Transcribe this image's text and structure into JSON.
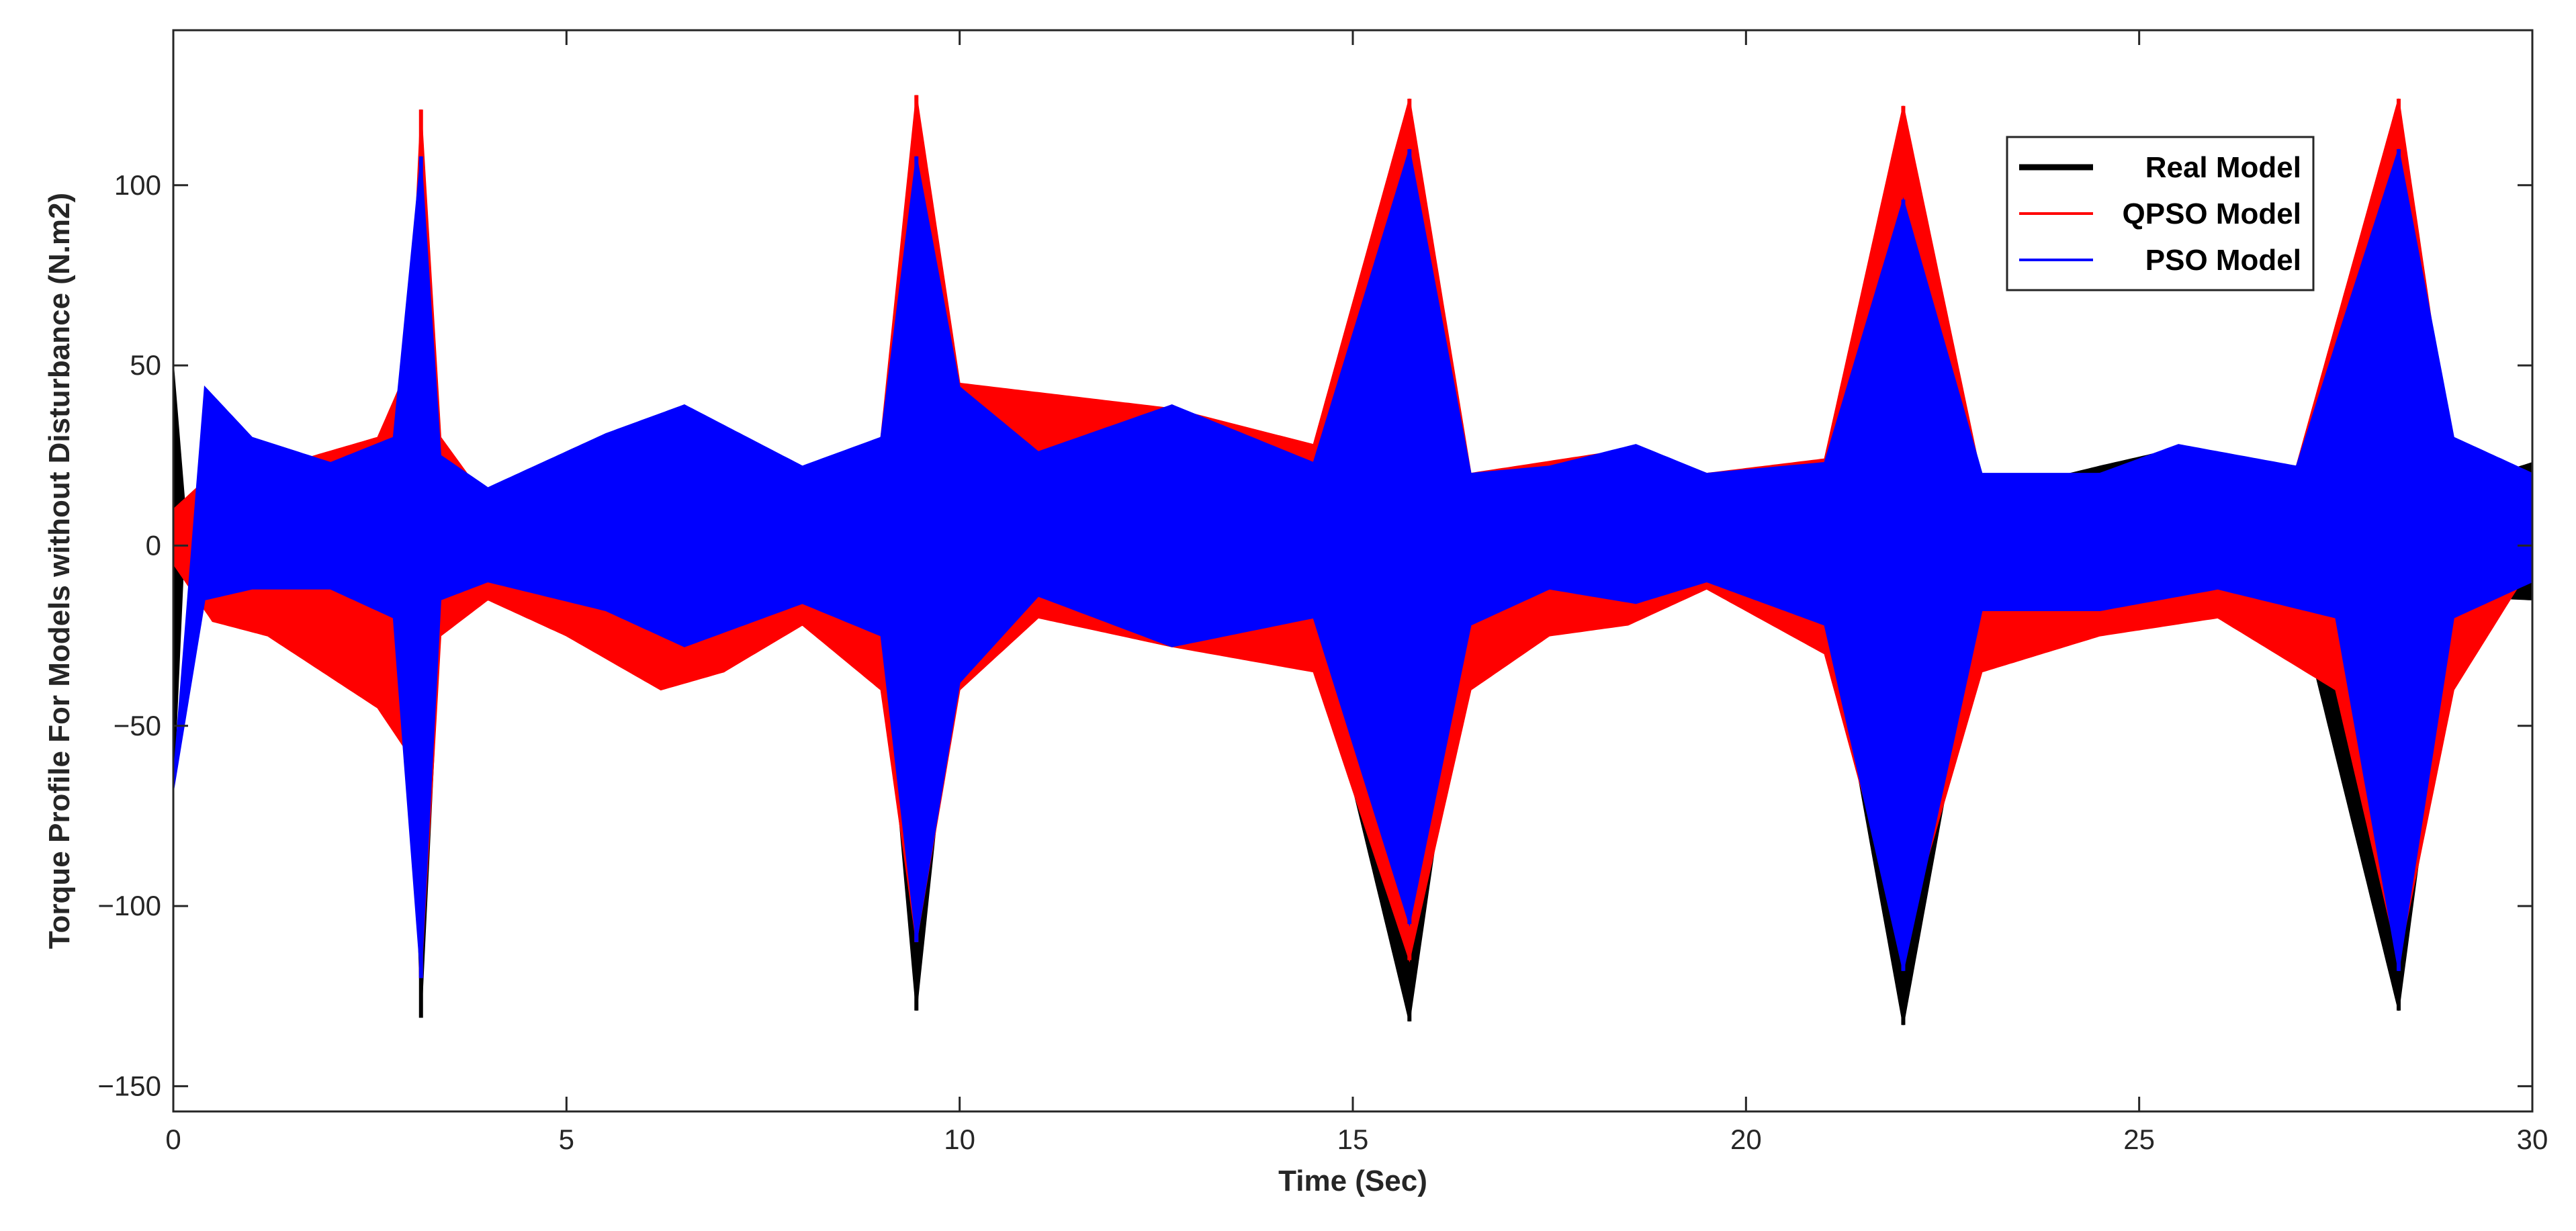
{
  "chart_data": {
    "type": "line",
    "title": "",
    "xlabel": "Time (Sec)",
    "ylabel": "Torque Profile For Models without Disturbance (N.m2)",
    "xlim": [
      0,
      30
    ],
    "ylim": [
      -157,
      143
    ],
    "xticks": [
      0,
      5,
      10,
      15,
      20,
      25,
      30
    ],
    "yticks": [
      -150,
      -100,
      -50,
      0,
      50,
      100
    ],
    "xtick_labels": [
      "0",
      "5",
      "10",
      "15",
      "20",
      "25",
      "30"
    ],
    "ytick_labels": [
      "−150",
      "−100",
      "−50",
      "0",
      "50",
      "100"
    ],
    "grid": false,
    "legend_position": "top-right",
    "spike_times": [
      3.15,
      9.45,
      15.72,
      22.0,
      28.3
    ],
    "series": [
      {
        "name": "Real Model",
        "color": "#000000",
        "envelope_upper": [
          [
            0,
            50
          ],
          [
            0.15,
            10
          ],
          [
            0.5,
            15
          ],
          [
            1.5,
            20
          ],
          [
            2.6,
            24
          ],
          [
            3.0,
            35
          ],
          [
            3.15,
            108
          ],
          [
            3.4,
            20
          ],
          [
            4.0,
            14
          ],
          [
            5.5,
            16
          ],
          [
            6.5,
            20
          ],
          [
            8.0,
            20
          ],
          [
            9.0,
            20
          ],
          [
            9.45,
            108
          ],
          [
            10.0,
            22
          ],
          [
            12.7,
            38
          ],
          [
            14.5,
            25
          ],
          [
            15.72,
            110
          ],
          [
            16.5,
            18
          ],
          [
            17.5,
            22
          ],
          [
            18.6,
            27
          ],
          [
            19.5,
            20
          ],
          [
            21.0,
            22
          ],
          [
            22.0,
            106
          ],
          [
            23.0,
            14
          ],
          [
            24.5,
            22
          ],
          [
            25.5,
            27
          ],
          [
            27.0,
            22
          ],
          [
            28.3,
            108
          ],
          [
            29.0,
            16
          ],
          [
            30.0,
            23
          ]
        ],
        "envelope_lower": [
          [
            0,
            -68
          ],
          [
            0.15,
            5
          ],
          [
            0.5,
            -8
          ],
          [
            1.5,
            -12
          ],
          [
            2.6,
            -15
          ],
          [
            3.0,
            -25
          ],
          [
            3.15,
            -131
          ],
          [
            3.4,
            -18
          ],
          [
            4.0,
            -13
          ],
          [
            5.5,
            -13
          ],
          [
            7.0,
            -13
          ],
          [
            8.0,
            -14
          ],
          [
            9.0,
            -18
          ],
          [
            9.45,
            -129
          ],
          [
            10.0,
            -15
          ],
          [
            12.7,
            -28
          ],
          [
            14.5,
            -22
          ],
          [
            15.72,
            -132
          ],
          [
            16.5,
            -14
          ],
          [
            18.5,
            -15
          ],
          [
            19.5,
            -10
          ],
          [
            21.0,
            -12
          ],
          [
            22.0,
            -133
          ],
          [
            23.0,
            -13
          ],
          [
            25.0,
            -13
          ],
          [
            27.0,
            -14
          ],
          [
            28.3,
            -129
          ],
          [
            29.0,
            -14
          ],
          [
            30.0,
            -15
          ]
        ]
      },
      {
        "name": "QPSO Model",
        "color": "#ff0000",
        "envelope_upper": [
          [
            0,
            10
          ],
          [
            0.5,
            20
          ],
          [
            1.5,
            23
          ],
          [
            2.6,
            30
          ],
          [
            3.0,
            50
          ],
          [
            3.15,
            121
          ],
          [
            3.4,
            30
          ],
          [
            4.0,
            12
          ],
          [
            5.5,
            20
          ],
          [
            6.5,
            25
          ],
          [
            8.0,
            20
          ],
          [
            9.0,
            30
          ],
          [
            9.45,
            125
          ],
          [
            10.0,
            45
          ],
          [
            12.7,
            38
          ],
          [
            14.5,
            28
          ],
          [
            15.72,
            124
          ],
          [
            16.5,
            20
          ],
          [
            18.6,
            27
          ],
          [
            19.5,
            20
          ],
          [
            21.0,
            24
          ],
          [
            22.0,
            122
          ],
          [
            23.0,
            18
          ],
          [
            24.5,
            20
          ],
          [
            25.5,
            26
          ],
          [
            27.0,
            22
          ],
          [
            28.3,
            124
          ],
          [
            29.0,
            20
          ],
          [
            30.0,
            10
          ]
        ],
        "envelope_lower": [
          [
            0,
            -5
          ],
          [
            0.5,
            -21
          ],
          [
            1.2,
            -25
          ],
          [
            2.6,
            -45
          ],
          [
            3.0,
            -58
          ],
          [
            3.15,
            -120
          ],
          [
            3.4,
            -25
          ],
          [
            4.0,
            -15
          ],
          [
            5.0,
            -25
          ],
          [
            6.2,
            -40
          ],
          [
            7.0,
            -35
          ],
          [
            8.0,
            -22
          ],
          [
            9.0,
            -40
          ],
          [
            9.45,
            -110
          ],
          [
            10.0,
            -40
          ],
          [
            11.0,
            -20
          ],
          [
            12.7,
            -28
          ],
          [
            14.5,
            -35
          ],
          [
            15.72,
            -115
          ],
          [
            16.5,
            -40
          ],
          [
            17.5,
            -25
          ],
          [
            18.5,
            -22
          ],
          [
            19.5,
            -12
          ],
          [
            21.0,
            -30
          ],
          [
            22.0,
            -110
          ],
          [
            23.0,
            -35
          ],
          [
            24.5,
            -25
          ],
          [
            26.0,
            -20
          ],
          [
            27.5,
            -40
          ],
          [
            28.3,
            -115
          ],
          [
            29.0,
            -40
          ],
          [
            30.0,
            -5
          ]
        ]
      },
      {
        "name": "PSO Model",
        "color": "#0000ff",
        "envelope_upper": [
          [
            0,
            -65
          ],
          [
            0.4,
            44
          ],
          [
            1.0,
            30
          ],
          [
            2.0,
            23
          ],
          [
            2.8,
            30
          ],
          [
            3.15,
            108
          ],
          [
            3.4,
            25
          ],
          [
            4.0,
            16
          ],
          [
            5.5,
            31
          ],
          [
            6.5,
            39
          ],
          [
            8.0,
            22
          ],
          [
            9.0,
            30
          ],
          [
            9.45,
            108
          ],
          [
            10.0,
            44
          ],
          [
            11.0,
            26
          ],
          [
            12.7,
            39
          ],
          [
            14.5,
            23
          ],
          [
            15.72,
            110
          ],
          [
            16.5,
            20
          ],
          [
            17.5,
            22
          ],
          [
            18.6,
            28
          ],
          [
            19.5,
            20
          ],
          [
            21.0,
            23
          ],
          [
            22.0,
            96
          ],
          [
            23.0,
            20
          ],
          [
            24.5,
            20
          ],
          [
            25.5,
            28
          ],
          [
            27.0,
            22
          ],
          [
            28.3,
            110
          ],
          [
            29.0,
            30
          ],
          [
            30.0,
            20
          ]
        ],
        "envelope_lower": [
          [
            0,
            -68
          ],
          [
            0.4,
            -15
          ],
          [
            1.0,
            -12
          ],
          [
            2.0,
            -12
          ],
          [
            2.8,
            -20
          ],
          [
            3.15,
            -120
          ],
          [
            3.4,
            -15
          ],
          [
            4.0,
            -10
          ],
          [
            5.5,
            -18
          ],
          [
            6.5,
            -28
          ],
          [
            8.0,
            -16
          ],
          [
            9.0,
            -25
          ],
          [
            9.45,
            -110
          ],
          [
            10.0,
            -38
          ],
          [
            11.0,
            -14
          ],
          [
            12.7,
            -28
          ],
          [
            14.5,
            -20
          ],
          [
            15.72,
            -105
          ],
          [
            16.5,
            -22
          ],
          [
            17.5,
            -12
          ],
          [
            18.6,
            -16
          ],
          [
            19.5,
            -10
          ],
          [
            21.0,
            -22
          ],
          [
            22.0,
            -118
          ],
          [
            23.0,
            -18
          ],
          [
            24.5,
            -18
          ],
          [
            26.0,
            -12
          ],
          [
            27.5,
            -20
          ],
          [
            28.3,
            -118
          ],
          [
            29.0,
            -20
          ],
          [
            30.0,
            -10
          ]
        ]
      }
    ]
  }
}
